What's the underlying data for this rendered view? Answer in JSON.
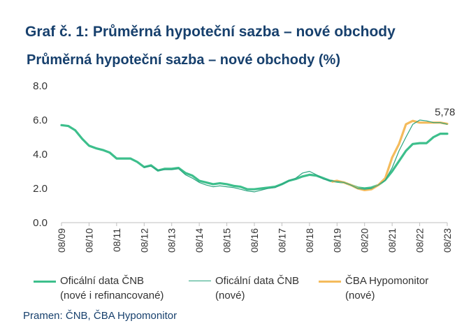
{
  "heading": "Graf č. 1: Průměrná hypoteční sazba – nové obchody",
  "source": "Pramen: ČNB, ČBA Hypomonitor",
  "chart_data": {
    "type": "line",
    "title": "Průměrná hypoteční sazba – nové obchody (%)",
    "xlabel": "",
    "ylabel": "",
    "ylim": [
      0,
      8
    ],
    "yticks": [
      "0.0",
      "2.0",
      "4.0",
      "6.0",
      "8.0"
    ],
    "xticks": [
      "08/09",
      "08/10",
      "08/11",
      "08/12",
      "08/13",
      "08/14",
      "08/15",
      "08/16",
      "08/17",
      "08/18",
      "08/19",
      "08/20",
      "08/21",
      "08/22",
      "08/23"
    ],
    "xlim": [
      2009.583,
      2023.583
    ],
    "grid": false,
    "legend_position": "bottom",
    "annotation": {
      "text": "5,78",
      "x": 2023.5,
      "y": 5.78
    },
    "series": [
      {
        "name": "Oficální data ČNB (nové i refinancované)",
        "legend_lines": [
          "Oficální data ČNB",
          "(nové i refinancované)"
        ],
        "color": "#3dbf8c",
        "x": [
          2009.583,
          2009.833,
          2010.083,
          2010.333,
          2010.583,
          2010.833,
          2011.083,
          2011.333,
          2011.583,
          2011.833,
          2012.083,
          2012.333,
          2012.583,
          2012.833,
          2013.083,
          2013.333,
          2013.583,
          2013.833,
          2014.083,
          2014.333,
          2014.583,
          2014.833,
          2015.083,
          2015.333,
          2015.583,
          2015.833,
          2016.083,
          2016.333,
          2016.583,
          2016.833,
          2017.083,
          2017.333,
          2017.583,
          2017.833,
          2018.083,
          2018.333,
          2018.583,
          2018.833,
          2019.083,
          2019.333,
          2019.583,
          2019.833,
          2020.083,
          2020.333,
          2020.583,
          2020.833,
          2021.083,
          2021.333,
          2021.583,
          2021.833,
          2022.083,
          2022.333,
          2022.583,
          2022.833,
          2023.083,
          2023.333,
          2023.583
        ],
        "values": [
          5.7,
          5.65,
          5.4,
          4.9,
          4.5,
          4.35,
          4.25,
          4.1,
          3.75,
          3.75,
          3.75,
          3.55,
          3.25,
          3.35,
          3.05,
          3.15,
          3.15,
          3.2,
          2.9,
          2.75,
          2.45,
          2.35,
          2.25,
          2.3,
          2.25,
          2.15,
          2.1,
          1.95,
          1.95,
          2.0,
          2.05,
          2.1,
          2.25,
          2.45,
          2.55,
          2.7,
          2.8,
          2.75,
          2.6,
          2.45,
          2.4,
          2.35,
          2.2,
          2.05,
          2.0,
          2.05,
          2.2,
          2.5,
          3.0,
          3.6,
          4.2,
          4.6,
          4.65,
          4.65,
          5.0,
          5.2,
          5.2
        ]
      },
      {
        "name": "Oficální data ČNB (nové)",
        "legend_lines": [
          "Oficální data ČNB",
          "(nové)"
        ],
        "color": "#2aa47f",
        "x": [
          2012.583,
          2012.833,
          2013.083,
          2013.333,
          2013.583,
          2013.833,
          2014.083,
          2014.333,
          2014.583,
          2014.833,
          2015.083,
          2015.333,
          2015.583,
          2015.833,
          2016.083,
          2016.333,
          2016.583,
          2016.833,
          2017.083,
          2017.333,
          2017.583,
          2017.833,
          2018.083,
          2018.333,
          2018.583,
          2018.833,
          2019.083,
          2019.333,
          2019.583,
          2019.833,
          2020.083,
          2020.333,
          2020.583,
          2020.833,
          2021.083,
          2021.333,
          2021.583,
          2021.833,
          2022.083,
          2022.333,
          2022.583,
          2022.833,
          2023.083,
          2023.333,
          2023.583
        ],
        "values": [
          3.25,
          3.3,
          3.05,
          3.1,
          3.1,
          3.15,
          2.8,
          2.6,
          2.35,
          2.2,
          2.1,
          2.15,
          2.1,
          2.05,
          1.95,
          1.85,
          1.8,
          1.9,
          2.0,
          2.05,
          2.25,
          2.45,
          2.6,
          2.9,
          3.0,
          2.8,
          2.55,
          2.45,
          2.4,
          2.35,
          2.2,
          2.0,
          1.95,
          2.0,
          2.2,
          2.5,
          3.2,
          4.2,
          5.0,
          5.75,
          6.0,
          5.95,
          5.85,
          5.85,
          5.75
        ]
      },
      {
        "name": "ČBA Hypomonitor (nové)",
        "legend_lines": [
          "ČBA Hypomonitor",
          "(nové)"
        ],
        "color": "#f4bb5c",
        "x": [
          2019.417,
          2019.583,
          2019.833,
          2020.083,
          2020.333,
          2020.583,
          2020.833,
          2021.083,
          2021.333,
          2021.583,
          2021.833,
          2022.083,
          2022.333,
          2022.583,
          2022.833,
          2023.083,
          2023.333,
          2023.583
        ],
        "values": [
          2.4,
          2.45,
          2.35,
          2.2,
          2.0,
          1.9,
          1.95,
          2.2,
          2.6,
          3.8,
          4.6,
          5.75,
          5.95,
          5.85,
          5.85,
          5.85,
          5.85,
          5.78
        ]
      }
    ]
  }
}
